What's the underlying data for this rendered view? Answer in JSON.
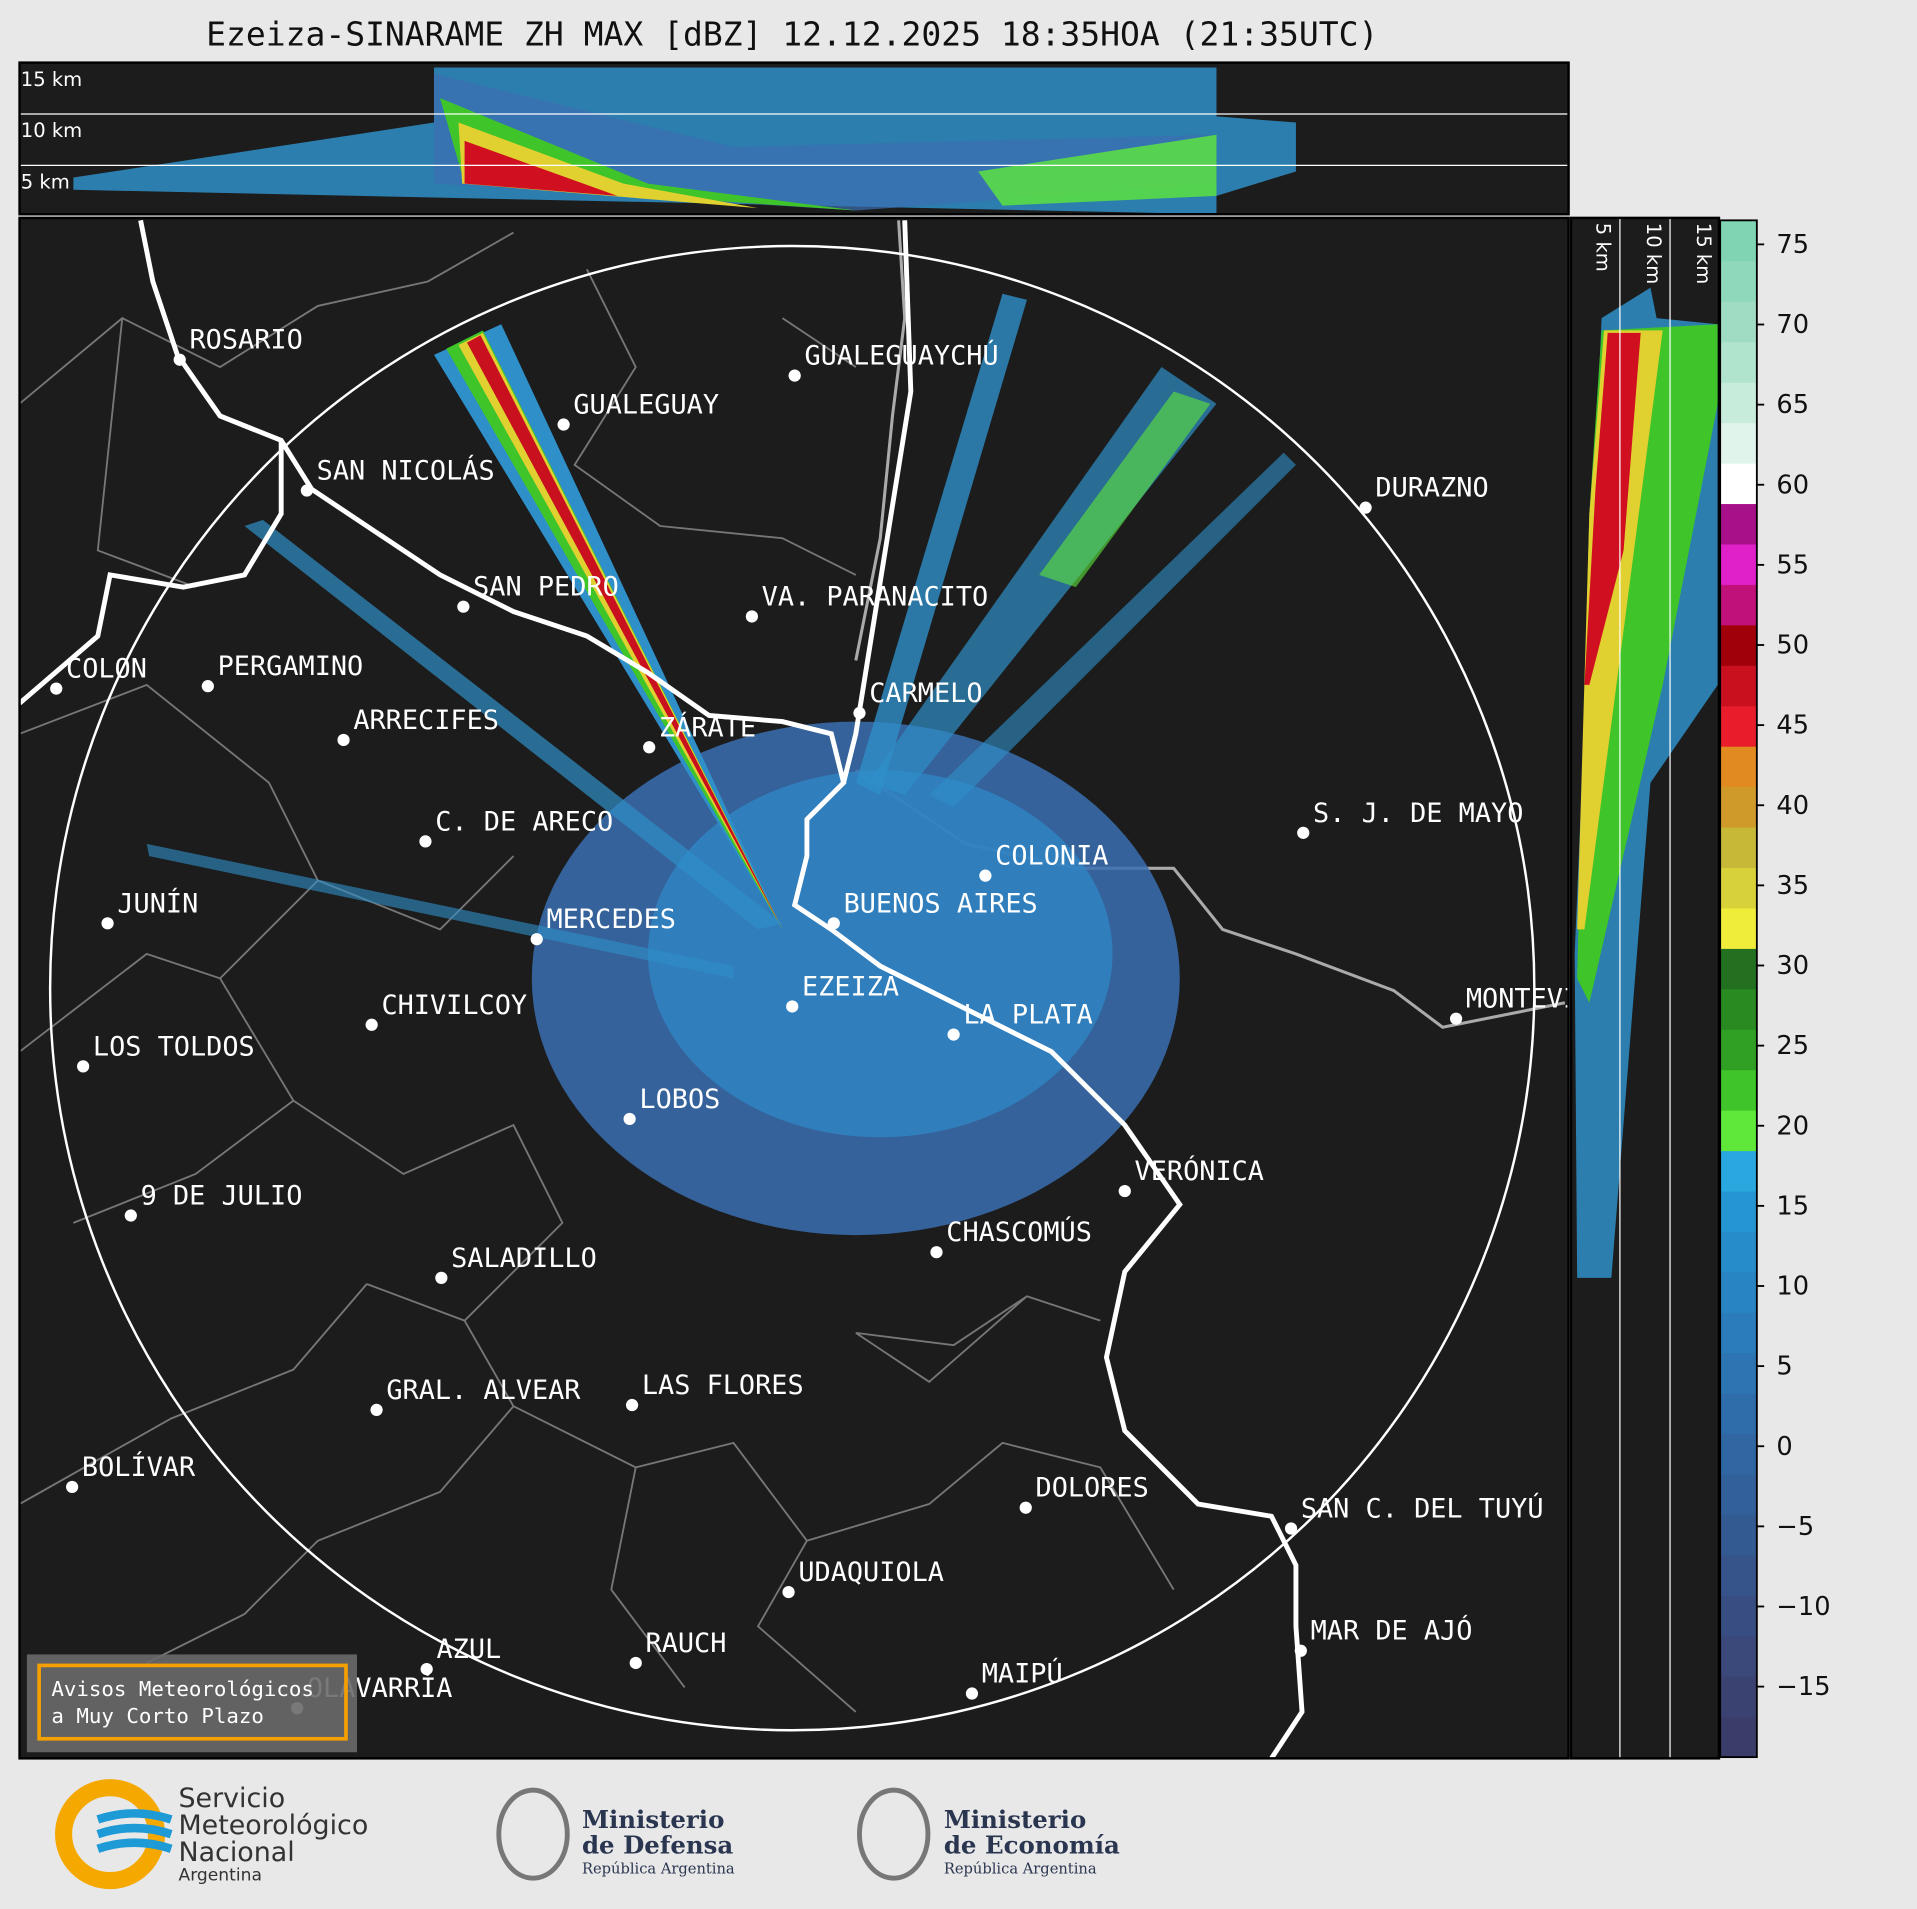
{
  "header": {
    "title": "Ezeiza-SINARAME ZH MAX [dBZ] 12.12.2025 18:35HOA (21:35UTC)"
  },
  "vertical_profile_top": {
    "height_labels": [
      "15 km",
      "10 km",
      "5 km"
    ]
  },
  "vertical_profile_side": {
    "height_labels": [
      "5 km",
      "10 km",
      "15 km"
    ]
  },
  "map": {
    "cities": [
      "ROSARIO",
      "GUALEGUAY",
      "GUALEGUAYCHÚ",
      "SAN NICOLÁS",
      "DURAZNO",
      "SAN PEDRO",
      "VA. PARANACITO",
      "COLON",
      "PERGAMINO",
      "CARMELO",
      "ARRECIFES",
      "ZÁRATE",
      "S. J. DE MAYO",
      "C. DE ARECO",
      "COLONIA",
      "BUENOS AIRES",
      "JUNÍN",
      "MERCEDES",
      "EZEIZA",
      "MONTEVIDEO",
      "CHIVILCOY",
      "LA PLATA",
      "LOS TOLDOS",
      "LOBOS",
      "VERÓNICA",
      "9 DE JULIO",
      "CHASCOMÚS",
      "SALADILLO",
      "GRAL. ALVEAR",
      "LAS FLORES",
      "BOLÍVAR",
      "DOLORES",
      "SAN C. DEL TUYÚ",
      "UDAQUIOLA",
      "MAR DE AJÓ",
      "AZUL",
      "RAUCH",
      "OLAVARRÍA",
      "MAIPÚ"
    ]
  },
  "chart_data": {
    "type": "colorbar",
    "ylim": [
      -19.4,
      76.5
    ],
    "yticks": [
      {
        "value": -15,
        "label": "−15"
      },
      {
        "value": -10,
        "label": "−10"
      },
      {
        "value": -5,
        "label": "−5"
      },
      0,
      5,
      10,
      15,
      20,
      25,
      30,
      35,
      40,
      45,
      50,
      55,
      60,
      65,
      70,
      75
    ],
    "colors": [
      "#3a3c6a",
      "#3a4272",
      "#3a487a",
      "#384e82",
      "#36548a",
      "#345a92",
      "#32609a",
      "#3066a2",
      "#2e6caa",
      "#2c74b2",
      "#2a7cba",
      "#2884c2",
      "#268cca",
      "#2696d2",
      "#28a8de",
      "#5fe83a",
      "#3fc42a",
      "#2fa024",
      "#2a8a22",
      "#237020",
      "#f0ec3a",
      "#d8d23a",
      "#c8b838",
      "#d09a2a",
      "#e08a20",
      "#e81c2a",
      "#c8101e",
      "#a0000a",
      "#c0107a",
      "#e020c8",
      "#a8108a",
      "#ffffff",
      "#e0f4ec",
      "#c8ecdc",
      "#b0e4cc",
      "#a0dcc4",
      "#90d8bc",
      "#80d4b4"
    ]
  },
  "notice": {
    "lines": [
      "Avisos Meteorológicos",
      "a Muy Corto Plazo"
    ]
  },
  "footer": {
    "logos": [
      {
        "lines": [
          "Servicio",
          "Meteorológico",
          "Nacional",
          "Argentina"
        ]
      },
      {
        "lines": [
          "Ministerio",
          "de Defensa",
          "República Argentina"
        ]
      },
      {
        "lines": [
          "Ministerio",
          "de Economía",
          "República Argentina"
        ]
      }
    ]
  }
}
